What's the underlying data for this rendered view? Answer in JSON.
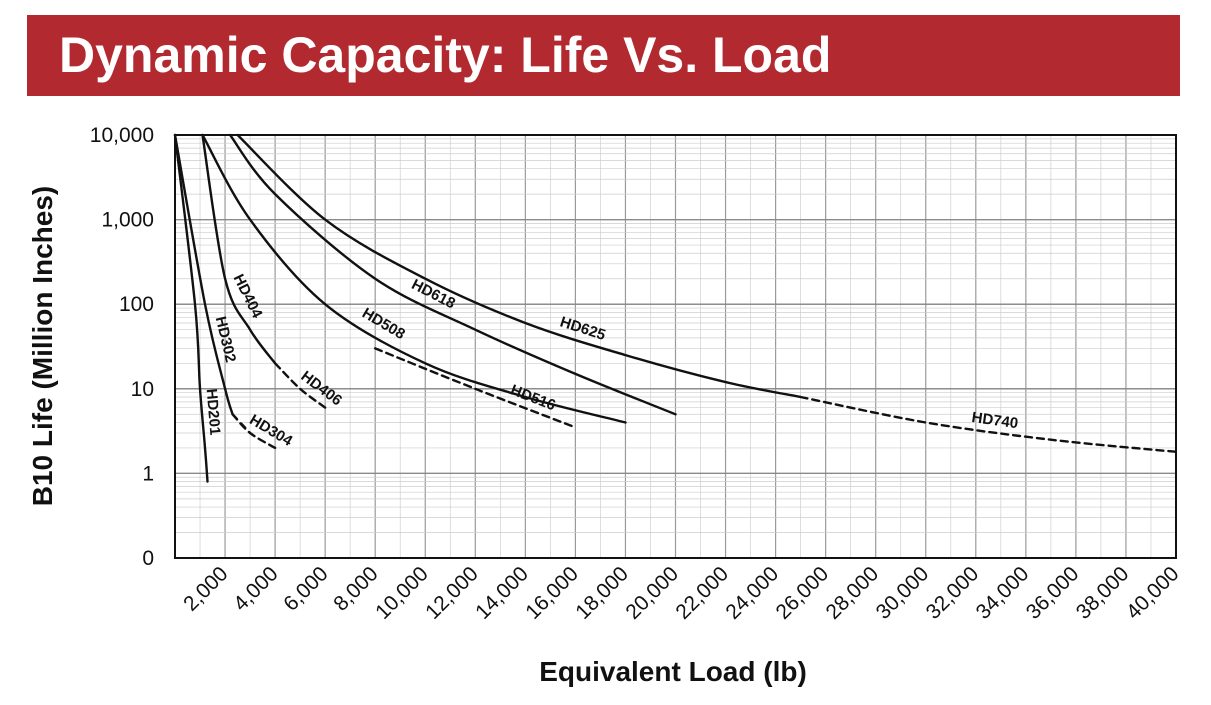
{
  "banner": {
    "title": "Dynamic Capacity: Life Vs. Load",
    "color": "#b22a30"
  },
  "chart_data": {
    "type": "line",
    "title": "Dynamic Capacity: Life Vs. Load",
    "xlabel": "Equivalent Load (lb)",
    "ylabel": "B10 Life (Million Inches)",
    "x_scale": "linear",
    "y_scale": "log",
    "xlim": [
      0,
      40000
    ],
    "ylim": [
      0.1,
      10000
    ],
    "grid": true,
    "x_ticks": [
      2000,
      4000,
      6000,
      8000,
      10000,
      12000,
      14000,
      16000,
      18000,
      20000,
      22000,
      24000,
      26000,
      28000,
      30000,
      32000,
      34000,
      36000,
      38000,
      40000
    ],
    "x_tick_labels": [
      "2,000",
      "4,000",
      "6,000",
      "8,000",
      "10,000",
      "12,000",
      "14,000",
      "16,000",
      "18,000",
      "20,000",
      "22,000",
      "24,000",
      "26,000",
      "28,000",
      "30,000",
      "32,000",
      "34,000",
      "36,000",
      "38,000",
      "40,000"
    ],
    "y_ticks": [
      0.1,
      1,
      10,
      100,
      1000,
      10000
    ],
    "y_tick_labels": [
      "0",
      "1",
      "10",
      "100",
      "1,000",
      "10,000"
    ],
    "series": [
      {
        "name": "HD201",
        "points": [
          [
            0,
            10000
          ],
          [
            800,
            100
          ],
          [
            1000,
            10
          ],
          [
            1200,
            2
          ],
          [
            1300,
            0.8
          ]
        ]
      },
      {
        "name": "HD302",
        "points": [
          [
            0,
            10000
          ],
          [
            1200,
            100
          ],
          [
            2000,
            10
          ],
          [
            2300,
            5
          ]
        ],
        "continuation_dashed": [
          [
            2300,
            5
          ],
          [
            3000,
            3
          ]
        ]
      },
      {
        "name": "HD304",
        "points": [
          [
            2300,
            5
          ],
          [
            3000,
            3
          ],
          [
            4000,
            2
          ]
        ],
        "line_style": "dashed"
      },
      {
        "name": "HD404",
        "points": [
          [
            1100,
            10000
          ],
          [
            2000,
            200
          ],
          [
            3000,
            50
          ],
          [
            4000,
            20
          ]
        ]
      },
      {
        "name": "HD406",
        "points": [
          [
            4000,
            20
          ],
          [
            5000,
            10
          ],
          [
            6000,
            6
          ]
        ],
        "line_style": "dashed"
      },
      {
        "name": "HD508",
        "points": [
          [
            1100,
            10000
          ],
          [
            3000,
            1000
          ],
          [
            6000,
            100
          ],
          [
            10000,
            20
          ],
          [
            14000,
            8
          ],
          [
            18000,
            4
          ]
        ]
      },
      {
        "name": "HD516",
        "points": [
          [
            8000,
            30
          ],
          [
            12000,
            10
          ],
          [
            16000,
            3.5
          ]
        ],
        "line_style": "dashed"
      },
      {
        "name": "HD618",
        "points": [
          [
            2200,
            10000
          ],
          [
            4000,
            2000
          ],
          [
            8000,
            200
          ],
          [
            12000,
            50
          ],
          [
            16000,
            15
          ],
          [
            20000,
            5
          ]
        ]
      },
      {
        "name": "HD625",
        "points": [
          [
            2500,
            10000
          ],
          [
            6000,
            1000
          ],
          [
            10000,
            200
          ],
          [
            14000,
            60
          ],
          [
            18000,
            25
          ],
          [
            22000,
            12
          ],
          [
            25000,
            8
          ]
        ]
      },
      {
        "name": "HD740",
        "points": [
          [
            25000,
            8
          ],
          [
            30000,
            4
          ],
          [
            35000,
            2.5
          ],
          [
            40000,
            1.8
          ]
        ],
        "line_style": "dashed"
      }
    ]
  }
}
